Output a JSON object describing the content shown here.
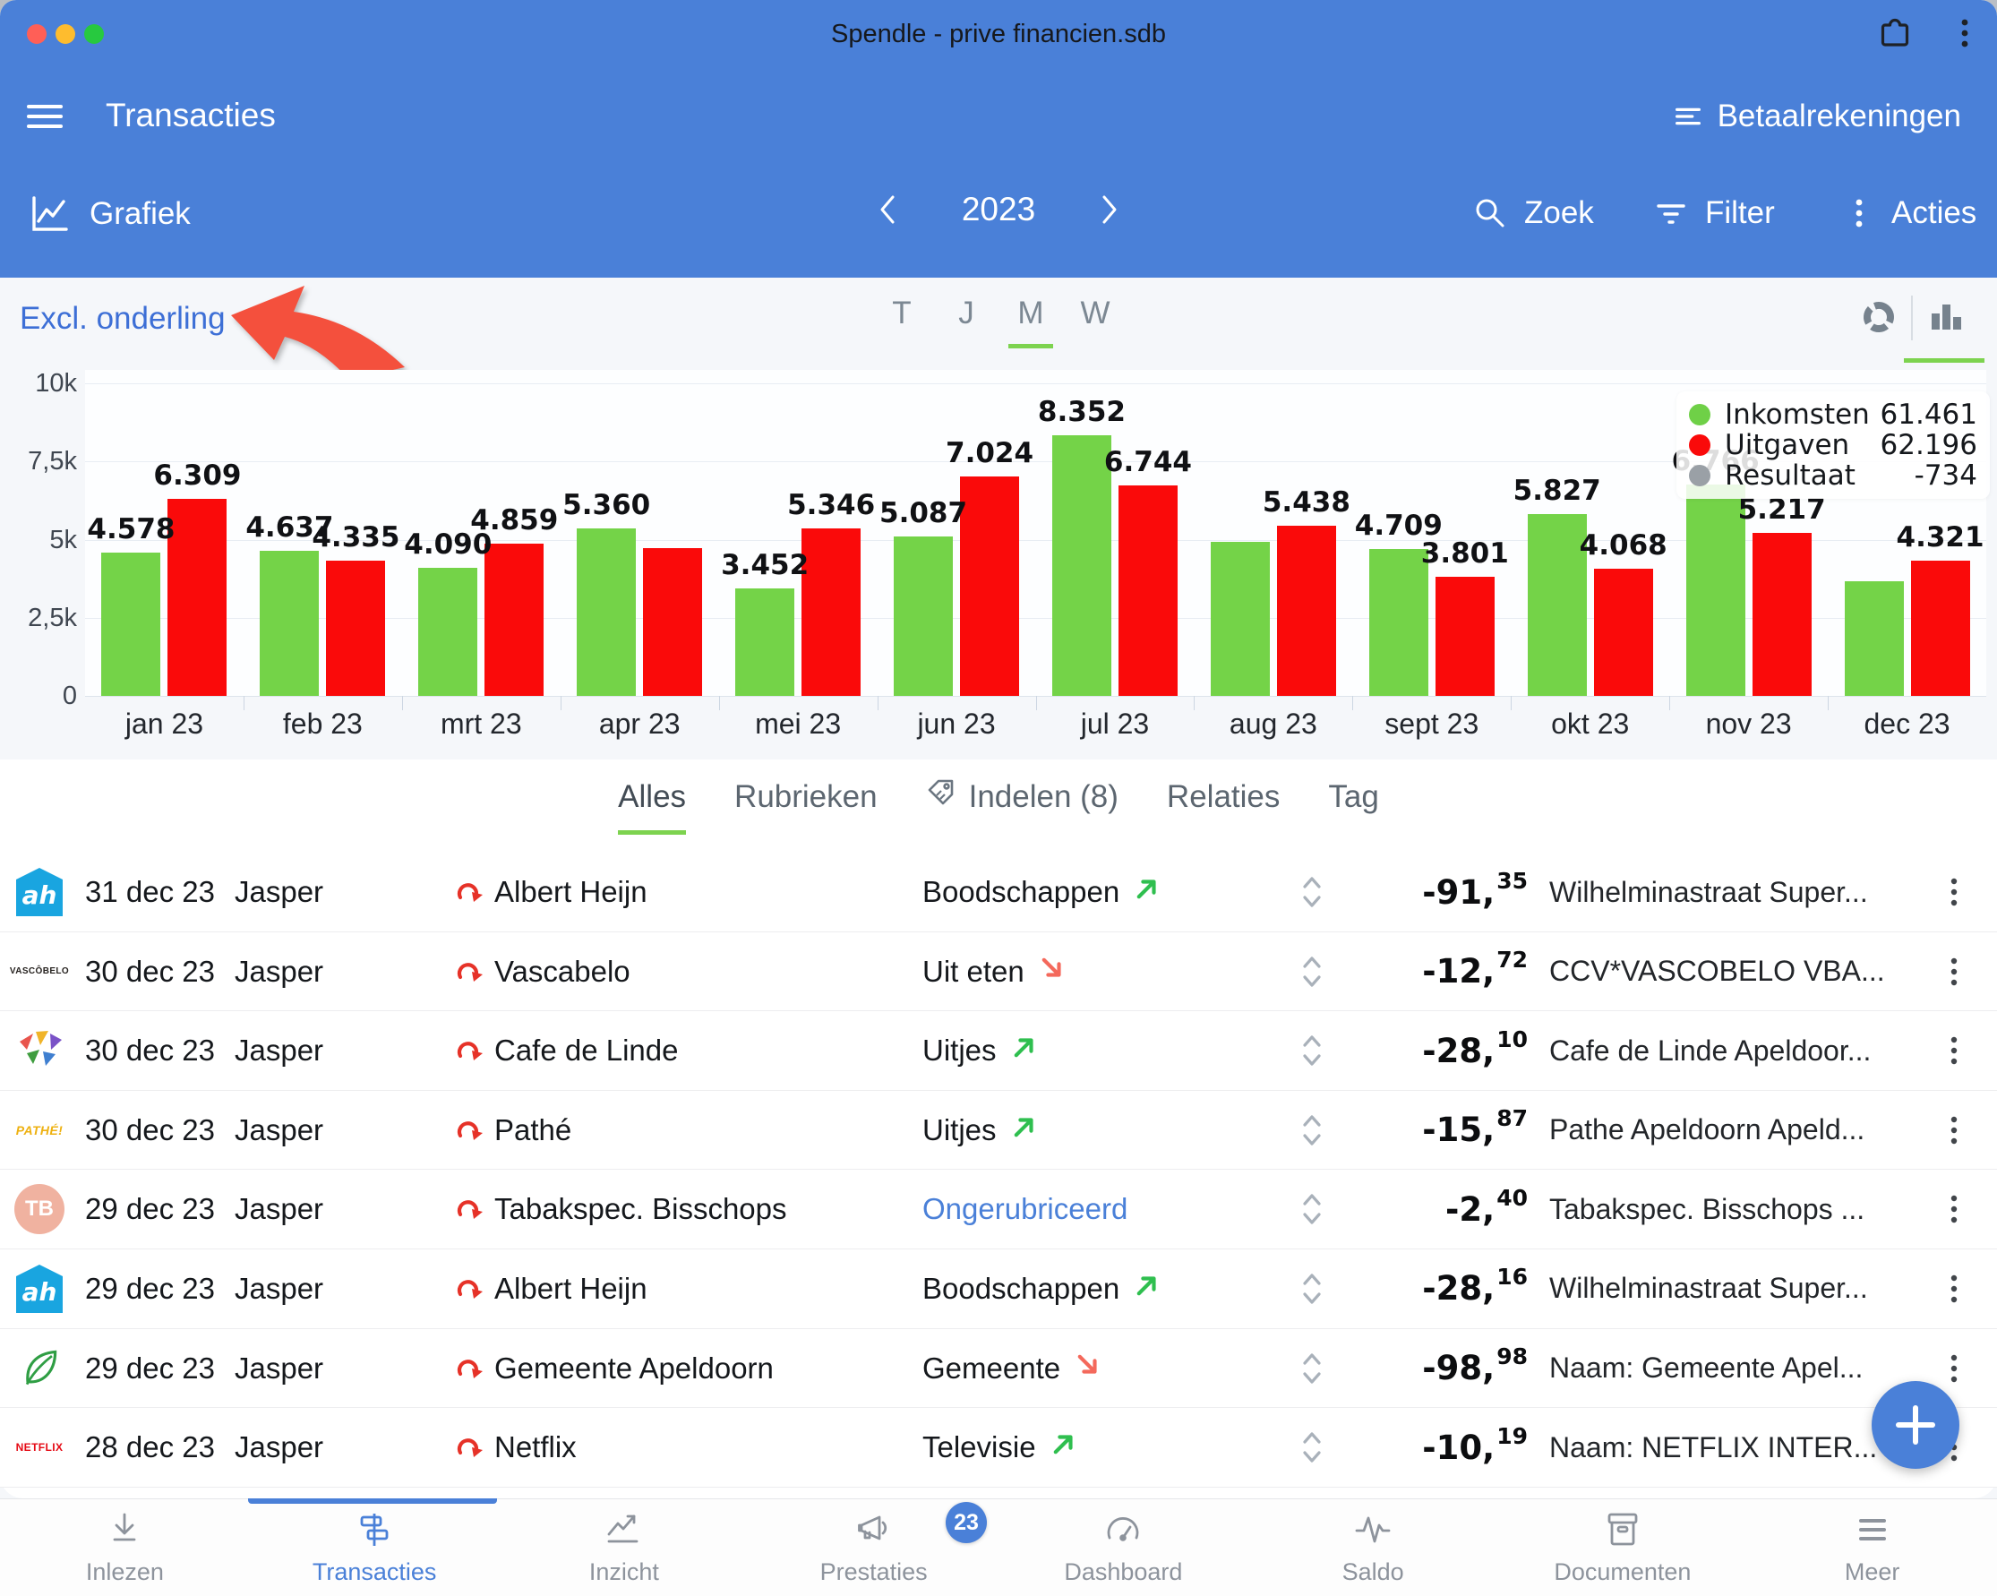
{
  "window": {
    "title": "Spendle - prive financien.sdb"
  },
  "header": {
    "title": "Transacties",
    "accounts_label": "Betaalrekeningen"
  },
  "toolbar": {
    "view_label": "Grafiek",
    "year": "2023",
    "search_label": "Zoek",
    "filter_label": "Filter",
    "actions_label": "Acties"
  },
  "chart_section": {
    "exclude_link": "Excl. onderling",
    "period_tabs": [
      {
        "label": "T",
        "active": false
      },
      {
        "label": "J",
        "active": false
      },
      {
        "label": "M",
        "active": true
      },
      {
        "label": "W",
        "active": false
      }
    ],
    "view_icons": [
      "donut-chart-icon",
      "bar-chart-icon"
    ],
    "active_view": "bar-chart-icon"
  },
  "chart_data": {
    "type": "bar",
    "title": "",
    "xlabel": "",
    "ylabel": "",
    "ylim": [
      0,
      10000
    ],
    "grid": true,
    "legend_position": "top-right",
    "yticks": [
      "10k",
      "7,5k",
      "5k",
      "2,5k",
      "0"
    ],
    "categories": [
      "jan 23",
      "feb 23",
      "mrt 23",
      "apr 23",
      "mei 23",
      "jun 23",
      "jul 23",
      "aug 23",
      "sept 23",
      "okt 23",
      "nov 23",
      "dec 23"
    ],
    "series": [
      {
        "name": "Inkomsten",
        "color": "#74d348",
        "values": [
          4578,
          4637,
          4090,
          5360,
          3452,
          5087,
          8352,
          4934,
          4709,
          5827,
          6766,
          3669
        ],
        "labels": [
          "4.578",
          "4.637",
          "4.090",
          "5.360",
          "3.452",
          "5.087",
          "8.352",
          "",
          "4.709",
          "5.827",
          "6.766",
          ""
        ]
      },
      {
        "name": "Uitgaven",
        "color": "#fa0a0a",
        "values": [
          6309,
          4335,
          4859,
          4734,
          5346,
          7024,
          6744,
          5438,
          3801,
          4068,
          5217,
          4321
        ],
        "labels": [
          "6.309",
          "4.335",
          "4.859",
          "",
          "5.346",
          "7.024",
          "6.744",
          "5.438",
          "3.801",
          "4.068",
          "5.217",
          "4.321"
        ]
      }
    ],
    "legend": [
      {
        "name": "Inkomsten",
        "value": "61.461",
        "color": "#6fd047"
      },
      {
        "name": "Uitgaven",
        "value": "62.196",
        "color": "#fa0a0a"
      },
      {
        "name": "Resultaat",
        "value": "-734",
        "color": "#9aa0a6"
      }
    ]
  },
  "list_tabs": [
    {
      "label": "Alles",
      "active": true,
      "icon": null
    },
    {
      "label": "Rubrieken",
      "active": false,
      "icon": null
    },
    {
      "label": "Indelen (8)",
      "active": false,
      "icon": "tag-icon"
    },
    {
      "label": "Relaties",
      "active": false,
      "icon": null
    },
    {
      "label": "Tag",
      "active": false,
      "icon": null
    }
  ],
  "transactions": [
    {
      "logo": {
        "type": "ah",
        "text": "ah"
      },
      "date": "31 dec 23",
      "person": "Jasper",
      "payee": "Albert Heijn",
      "category": "Boodschappen",
      "unclassified": false,
      "trend": "up",
      "amount_main": "-91,",
      "amount_cents": "35",
      "description": "Wilhelminastraat Super..."
    },
    {
      "logo": {
        "type": "textlogo",
        "text": "VASCÔBELO",
        "color": "#26221f",
        "size": 10
      },
      "date": "30 dec 23",
      "person": "Jasper",
      "payee": "Vascabelo",
      "category": "Uit eten",
      "unclassified": false,
      "trend": "down",
      "amount_main": "-12,",
      "amount_cents": "72",
      "description": "CCV*VASCOBELO VBA..."
    },
    {
      "logo": {
        "type": "flags",
        "text": ""
      },
      "date": "30 dec 23",
      "person": "Jasper",
      "payee": "Cafe de Linde",
      "category": "Uitjes",
      "unclassified": false,
      "trend": "up",
      "amount_main": "-28,",
      "amount_cents": "10",
      "description": "Cafe de Linde Apeldoor..."
    },
    {
      "logo": {
        "type": "textlogo",
        "text": "PATHÉ!",
        "color": "#eeb111",
        "size": 14,
        "italic": true
      },
      "date": "30 dec 23",
      "person": "Jasper",
      "payee": "Pathé",
      "category": "Uitjes",
      "unclassified": false,
      "trend": "up",
      "amount_main": "-15,",
      "amount_cents": "87",
      "description": "Pathe Apeldoorn Apeld..."
    },
    {
      "logo": {
        "type": "tb",
        "text": "TB"
      },
      "date": "29 dec 23",
      "person": "Jasper",
      "payee": "Tabakspec. Bisschops",
      "category": "Ongerubriceerd",
      "unclassified": true,
      "trend": "none",
      "amount_main": "-2,",
      "amount_cents": "40",
      "description": "Tabakspec. Bisschops ..."
    },
    {
      "logo": {
        "type": "ah",
        "text": "ah"
      },
      "date": "29 dec 23",
      "person": "Jasper",
      "payee": "Albert Heijn",
      "category": "Boodschappen",
      "unclassified": false,
      "trend": "up",
      "amount_main": "-28,",
      "amount_cents": "16",
      "description": "Wilhelminastraat Super..."
    },
    {
      "logo": {
        "type": "leaf",
        "text": ""
      },
      "date": "29 dec 23",
      "person": "Jasper",
      "payee": "Gemeente Apeldoorn",
      "category": "Gemeente",
      "unclassified": false,
      "trend": "down",
      "amount_main": "-98,",
      "amount_cents": "98",
      "description": "Naam: Gemeente Apel..."
    },
    {
      "logo": {
        "type": "textlogo",
        "text": "NETFLIX",
        "color": "#e50914",
        "size": 12
      },
      "date": "28 dec 23",
      "person": "Jasper",
      "payee": "Netflix",
      "category": "Televisie",
      "unclassified": false,
      "trend": "up",
      "amount_main": "-10,",
      "amount_cents": "19",
      "description": "Naam: NETFLIX INTER..."
    }
  ],
  "fab": {
    "label": "+"
  },
  "bottom_nav": [
    {
      "label": "Inlezen",
      "icon": "download-icon",
      "active": false,
      "badge": null
    },
    {
      "label": "Transacties",
      "icon": "signpost-icon",
      "active": true,
      "badge": null
    },
    {
      "label": "Inzicht",
      "icon": "trend-icon",
      "active": false,
      "badge": null
    },
    {
      "label": "Prestaties",
      "icon": "megaphone-icon",
      "active": false,
      "badge": "23"
    },
    {
      "label": "Dashboard",
      "icon": "gauge-icon",
      "active": false,
      "badge": null
    },
    {
      "label": "Saldo",
      "icon": "pulse-icon",
      "active": false,
      "badge": null
    },
    {
      "label": "Documenten",
      "icon": "archive-icon",
      "active": false,
      "badge": null
    },
    {
      "label": "Meer",
      "icon": "menu-icon",
      "active": false,
      "badge": null
    }
  ],
  "colors": {
    "header_blue": "#4a80d8",
    "income_green": "#74d348",
    "expense_red": "#fa0a0a",
    "accent_underline_green": "#7dd34f",
    "link_blue": "#3d6fd6",
    "traffic_red": "#ff5f57",
    "traffic_yellow": "#febc2e",
    "traffic_green": "#27c93f"
  }
}
